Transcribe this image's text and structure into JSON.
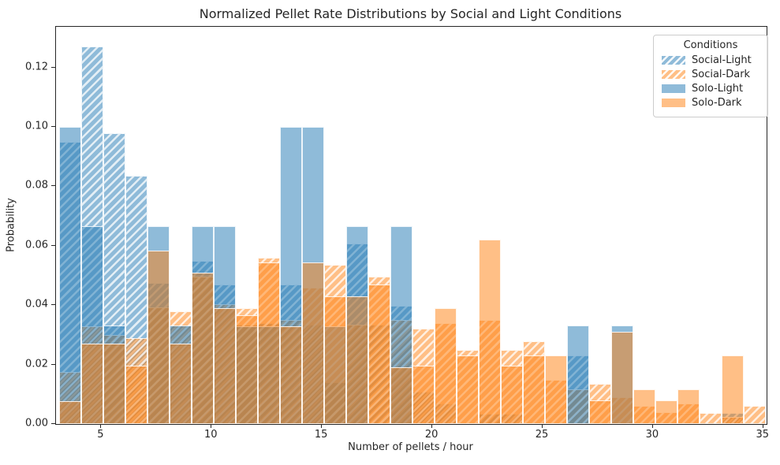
{
  "figure": {
    "title": "Normalized Pellet Rate Distributions by Social and Light Conditions",
    "xlabel": "Number of pellets / hour",
    "ylabel": "Probability"
  },
  "legend": {
    "title": "Conditions",
    "entries": [
      {
        "label": "Social-Light",
        "color": "#1f77b4",
        "hatched": true
      },
      {
        "label": "Social-Dark",
        "color": "#ff7f0e",
        "hatched": true
      },
      {
        "label": "Solo-Light",
        "color": "#1f77b4",
        "hatched": false
      },
      {
        "label": "Solo-Dark",
        "color": "#ff7f0e",
        "hatched": false
      }
    ]
  },
  "chart_data": {
    "type": "bar",
    "subtype": "overlaid-histograms",
    "stat": "probability",
    "title": "Normalized Pellet Rate Distributions by Social and Light Conditions",
    "xlabel": "Number of pellets / hour",
    "ylabel": "Probability",
    "grid": false,
    "legend_position": "upper right",
    "alpha": 0.5,
    "bin_width": 1.0,
    "bin_starts": [
      3.1,
      4.1,
      5.1,
      6.1,
      7.1,
      8.1,
      9.1,
      10.1,
      11.1,
      12.1,
      13.1,
      14.1,
      15.1,
      16.1,
      17.1,
      18.1,
      19.1,
      20.1,
      21.1,
      22.1,
      23.1,
      24.1,
      25.1,
      26.1,
      27.1,
      28.1,
      29.1,
      30.1,
      31.1,
      32.1,
      33.1,
      34.1
    ],
    "x_axis": {
      "ticks": [
        5,
        10,
        15,
        20,
        25,
        30,
        35
      ],
      "range": [
        2.95,
        35.15
      ]
    },
    "y_axis": {
      "tick_labels": [
        "0.00",
        "0.02",
        "0.04",
        "0.06",
        "0.08",
        "0.10",
        "0.12"
      ],
      "tick_values": [
        0,
        0.02,
        0.04,
        0.06,
        0.08,
        0.1,
        0.12
      ],
      "range": [
        0,
        0.1337
      ]
    },
    "series": [
      {
        "name": "Social-Light",
        "color": "#1f77b4",
        "hatch": "//",
        "values": [
          0.095,
          0.127,
          0.098,
          0.0835,
          0.0476,
          0.0335,
          0.0549,
          0.047,
          0.0335,
          0.034,
          0.047,
          0.0335,
          0.014,
          0.0607,
          0.0335,
          0.0397,
          0.011,
          0.007,
          0,
          0.0035,
          0.0035,
          0,
          0,
          0.023,
          0,
          0,
          0,
          0,
          0,
          0,
          0.0037,
          0
        ]
      },
      {
        "name": "Social-Dark",
        "color": "#ff7f0e",
        "hatch": "//",
        "values": [
          0.0175,
          0.033,
          0.03,
          0.029,
          0.0393,
          0.038,
          0.0496,
          0.0404,
          0.039,
          0.056,
          0.035,
          0.046,
          0.0536,
          0.0335,
          0.0496,
          0.035,
          0.032,
          0.034,
          0.025,
          0.035,
          0.025,
          0.028,
          0.015,
          0.0117,
          0.0135,
          0.009,
          0.006,
          0.004,
          0.007,
          0.0037,
          0.0023,
          0.006
        ]
      },
      {
        "name": "Solo-Light",
        "color": "#1f77b4",
        "hatch": null,
        "values": [
          0.1,
          0.0667,
          0.0333,
          0,
          0.0667,
          0.0333,
          0.0667,
          0.0667,
          0.033,
          0.033,
          0.1,
          0.1,
          0.033,
          0.0667,
          0,
          0.0667,
          0,
          0,
          0,
          0,
          0,
          0,
          0,
          0.0333,
          0,
          0.0333,
          0,
          0,
          0,
          0,
          0,
          0
        ]
      },
      {
        "name": "Solo-Dark",
        "color": "#ff7f0e",
        "hatch": null,
        "values": [
          0.0077,
          0.027,
          0.027,
          0.0197,
          0.0583,
          0.027,
          0.0509,
          0.039,
          0.0366,
          0.0545,
          0.033,
          0.0545,
          0.0429,
          0.043,
          0.047,
          0.019,
          0.0197,
          0.039,
          0.023,
          0.062,
          0.0197,
          0.023,
          0.023,
          0,
          0.008,
          0.031,
          0.0117,
          0.008,
          0.0117,
          0,
          0.023,
          0
        ]
      }
    ]
  }
}
